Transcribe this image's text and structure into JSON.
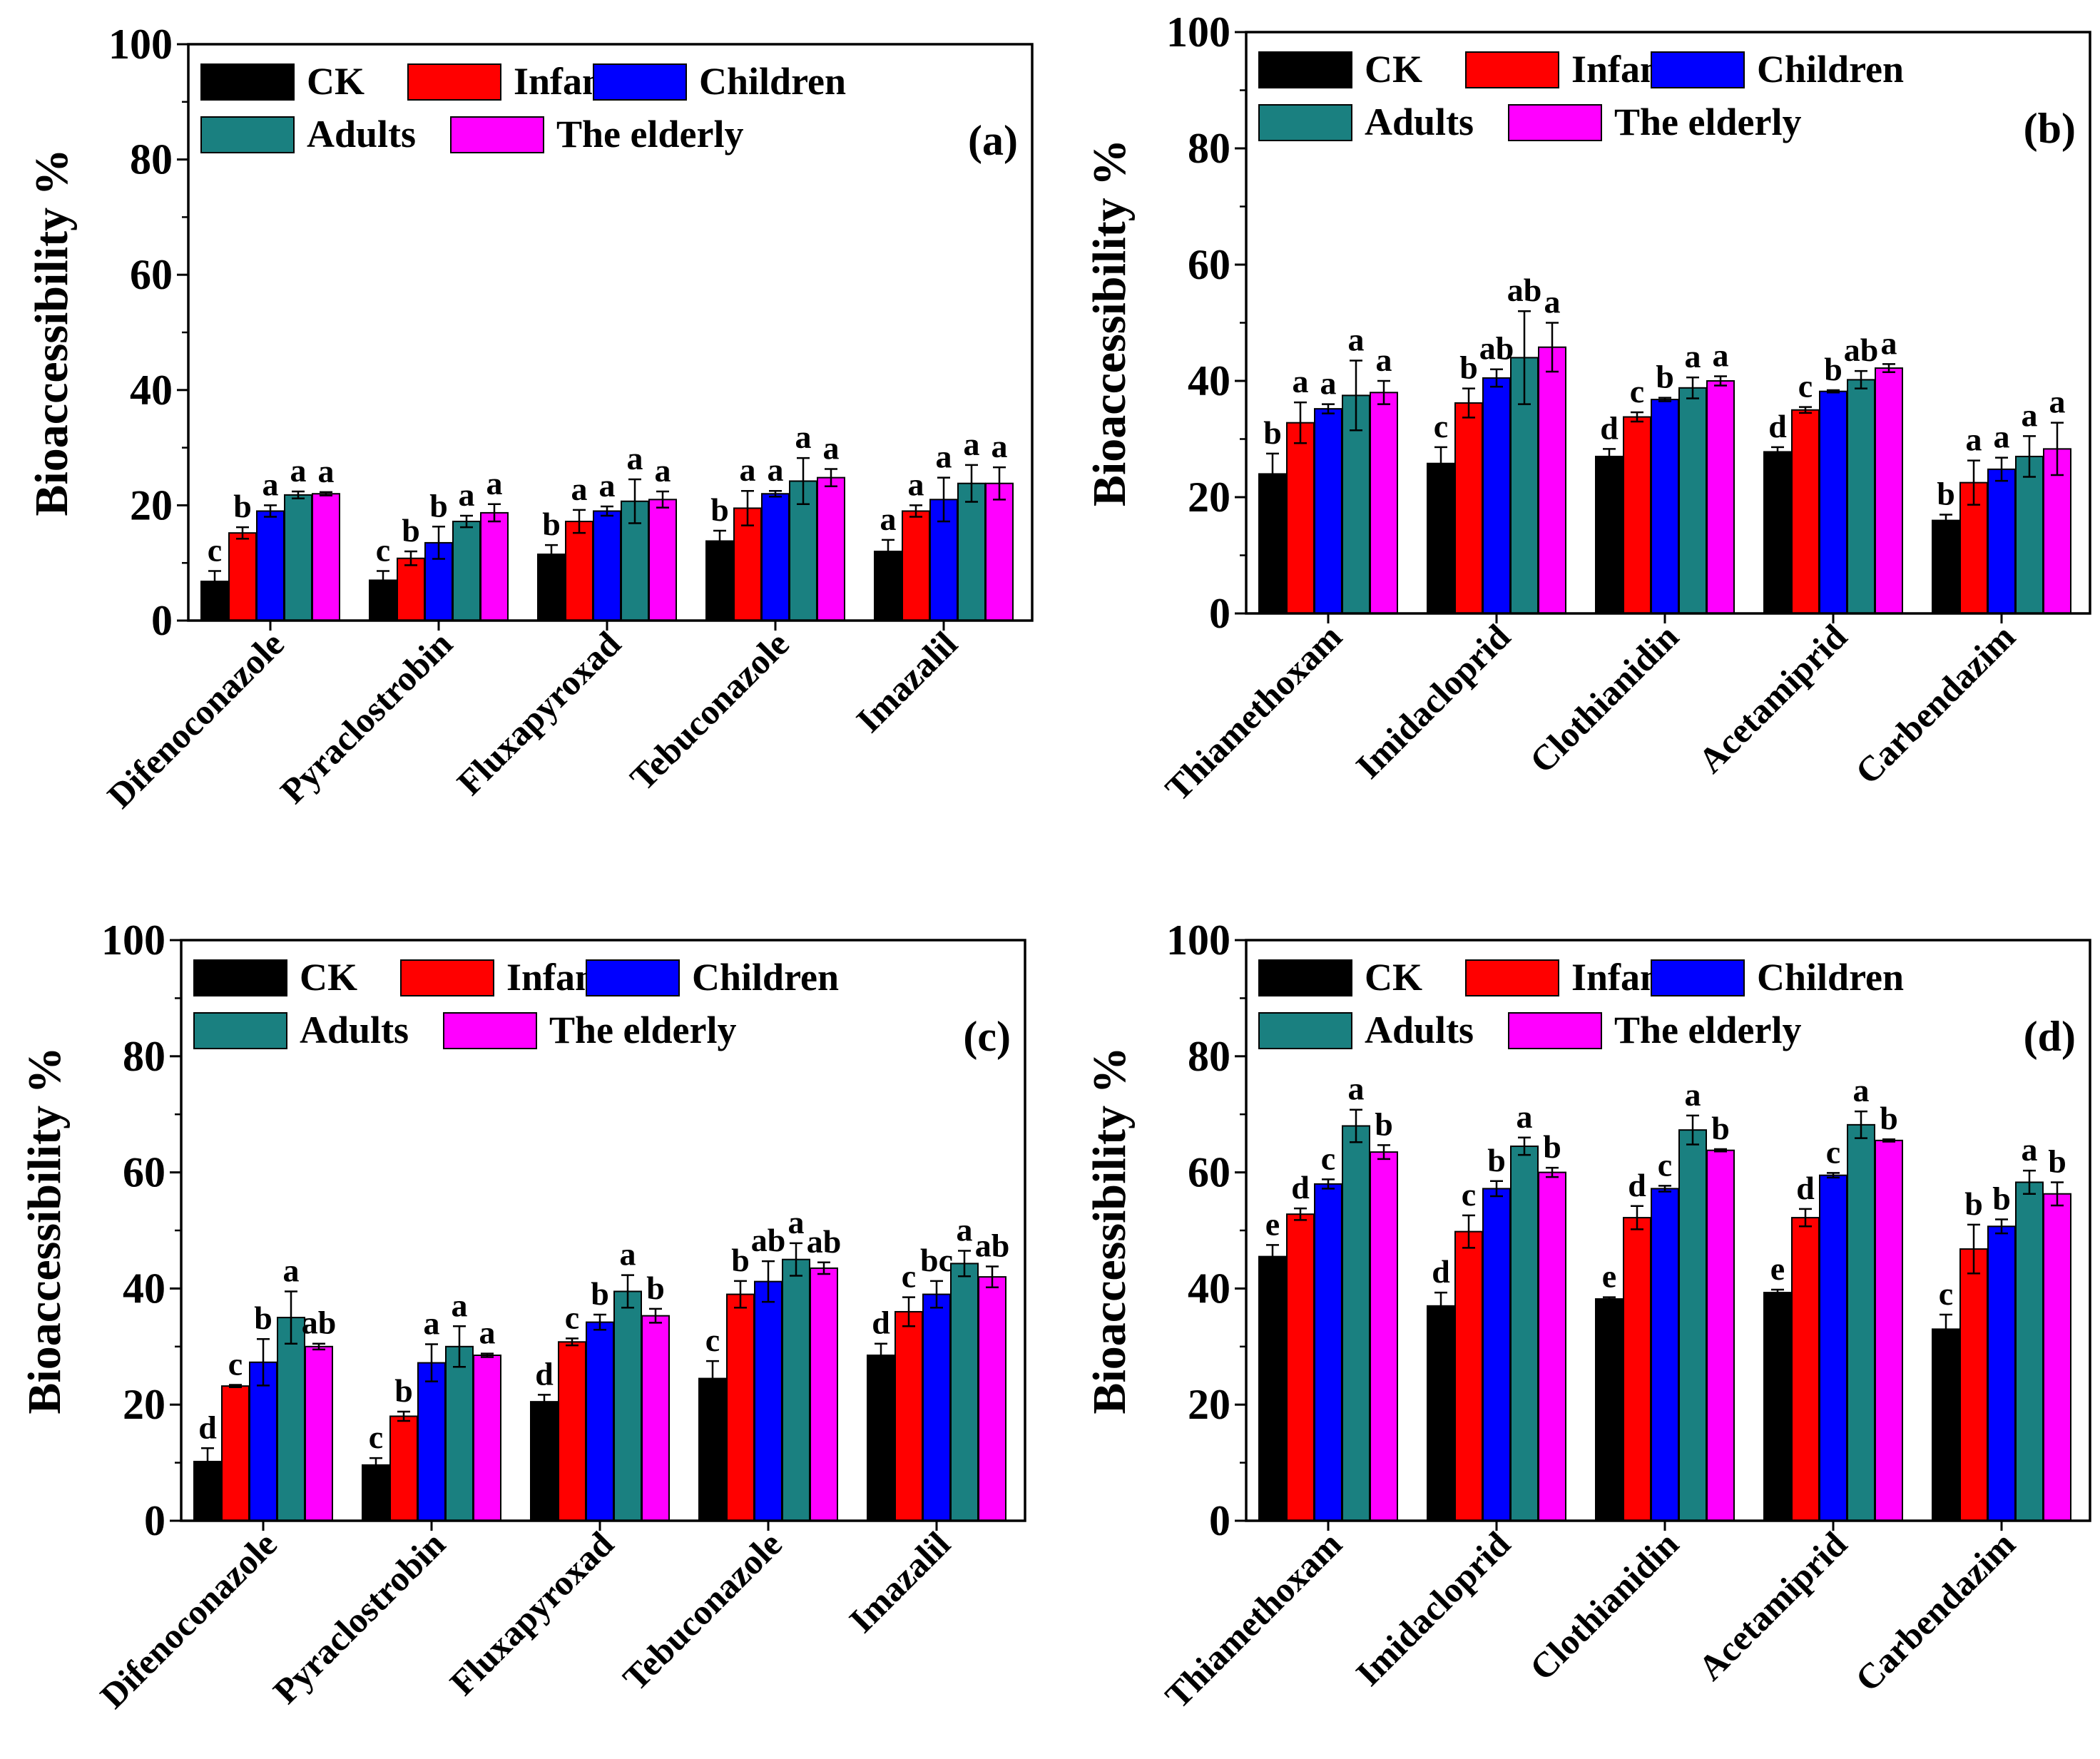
{
  "colors": {
    "CK": "#000000",
    "Infants": "#ff0000",
    "Children": "#0000ff",
    "Adults": "#1a8080",
    "The elderly": "#ff00ff"
  },
  "chart_data": [
    {
      "panel": "(a)",
      "type": "bar",
      "ylabel": "Bioaccessibility %",
      "ylim": [
        0,
        100
      ],
      "yticks": [
        0,
        20,
        40,
        60,
        80,
        100
      ],
      "categories": [
        "Difenoconazole",
        "Pyraclostrobin",
        "Fluxapyroxad",
        "Tebuconazole",
        "Imazalil"
      ],
      "legend": [
        "CK",
        "Infants",
        "Children",
        "Adults",
        "The elderly"
      ],
      "series": [
        {
          "name": "CK",
          "values": [
            6.8,
            7.0,
            11.5,
            13.8,
            12.0
          ],
          "errors": [
            1.8,
            1.6,
            1.6,
            1.8,
            2.0
          ],
          "letters": [
            "c",
            "c",
            "b",
            "b",
            "a"
          ]
        },
        {
          "name": "Infants",
          "values": [
            15.2,
            10.8,
            17.2,
            19.5,
            19.0
          ],
          "errors": [
            1.0,
            1.2,
            2.0,
            3.0,
            1.0
          ],
          "letters": [
            "b",
            "b",
            "a",
            "a",
            "a"
          ]
        },
        {
          "name": "Children",
          "values": [
            19.0,
            13.5,
            19.0,
            22.0,
            21.0
          ],
          "errors": [
            1.0,
            2.8,
            0.8,
            0.5,
            3.8
          ],
          "letters": [
            "a",
            "b",
            "a",
            "a",
            "a"
          ]
        },
        {
          "name": "Adults",
          "values": [
            21.8,
            17.2,
            20.7,
            24.2,
            23.8
          ],
          "errors": [
            0.6,
            1.0,
            3.8,
            4.0,
            3.2
          ],
          "letters": [
            "a",
            "a",
            "a",
            "a",
            "a"
          ]
        },
        {
          "name": "The elderly",
          "values": [
            22.0,
            18.7,
            21.0,
            24.8,
            23.8
          ],
          "errors": [
            0.3,
            1.5,
            1.4,
            1.5,
            2.8
          ],
          "letters": [
            "a",
            "a",
            "a",
            "a",
            "a"
          ]
        }
      ]
    },
    {
      "panel": "(b)",
      "type": "bar",
      "ylabel": "Bioaccessibility %",
      "ylim": [
        0,
        100
      ],
      "yticks": [
        0,
        20,
        40,
        60,
        80,
        100
      ],
      "categories": [
        "Thiamethoxam",
        "Imidacloprid",
        "Clothianidin",
        "Acetamiprid",
        "Carbendazim"
      ],
      "legend": [
        "CK",
        "Infants",
        "Children",
        "Adults",
        "The elderly"
      ],
      "series": [
        {
          "name": "CK",
          "values": [
            24.0,
            25.8,
            27.0,
            27.8,
            16.0
          ],
          "errors": [
            3.5,
            2.8,
            1.3,
            0.8,
            1.0
          ],
          "letters": [
            "b",
            "c",
            "d",
            "d",
            "b"
          ]
        },
        {
          "name": "Infants",
          "values": [
            32.8,
            36.2,
            33.8,
            35.0,
            22.5
          ],
          "errors": [
            3.5,
            2.5,
            0.8,
            0.5,
            3.8
          ],
          "letters": [
            "a",
            "b",
            "c",
            "c",
            "a"
          ]
        },
        {
          "name": "Children",
          "values": [
            35.2,
            40.5,
            36.8,
            38.2,
            24.8
          ],
          "errors": [
            0.8,
            1.5,
            0.3,
            0.2,
            2.0
          ],
          "letters": [
            "a",
            "ab",
            "b",
            "b",
            "a"
          ]
        },
        {
          "name": "Adults",
          "values": [
            37.5,
            44.0,
            38.8,
            40.2,
            27.0
          ],
          "errors": [
            6.0,
            8.0,
            1.8,
            1.5,
            3.5
          ],
          "letters": [
            "a",
            "ab",
            "a",
            "ab",
            "a"
          ]
        },
        {
          "name": "The elderly",
          "values": [
            38.0,
            45.8,
            40.0,
            42.2,
            28.3
          ],
          "errors": [
            2.0,
            4.2,
            0.8,
            0.7,
            4.5
          ],
          "letters": [
            "a",
            "a",
            "a",
            "a",
            "a"
          ]
        }
      ]
    },
    {
      "panel": "(c)",
      "type": "bar",
      "ylabel": "Bioaccessibility %",
      "ylim": [
        0,
        100
      ],
      "yticks": [
        0,
        20,
        40,
        60,
        80,
        100
      ],
      "categories": [
        "Difenoconazole",
        "Pyraclostrobin",
        "Fluxapyroxad",
        "Tebuconazole",
        "Imazalil"
      ],
      "legend": [
        "CK",
        "Infants",
        "Children",
        "Adults",
        "The elderly"
      ],
      "series": [
        {
          "name": "CK",
          "values": [
            10.2,
            9.6,
            20.5,
            24.5,
            28.5
          ],
          "errors": [
            2.3,
            1.2,
            1.2,
            3.0,
            2.0
          ],
          "letters": [
            "d",
            "c",
            "d",
            "c",
            "d"
          ]
        },
        {
          "name": "Infants",
          "values": [
            23.2,
            18.0,
            30.8,
            39.0,
            36.0
          ],
          "errors": [
            0.2,
            0.8,
            0.6,
            2.3,
            2.5
          ],
          "letters": [
            "c",
            "b",
            "c",
            "b",
            "c"
          ]
        },
        {
          "name": "Children",
          "values": [
            27.3,
            27.2,
            34.2,
            41.2,
            39.0
          ],
          "errors": [
            4.0,
            3.2,
            1.3,
            3.5,
            2.3
          ],
          "letters": [
            "b",
            "a",
            "b",
            "ab",
            "bc"
          ]
        },
        {
          "name": "Adults",
          "values": [
            35.0,
            30.0,
            39.5,
            45.0,
            44.3
          ],
          "errors": [
            4.5,
            3.5,
            2.8,
            2.8,
            2.2
          ],
          "letters": [
            "a",
            "a",
            "a",
            "a",
            "a"
          ]
        },
        {
          "name": "The elderly",
          "values": [
            30.0,
            28.5,
            35.3,
            43.5,
            42.0
          ],
          "errors": [
            0.5,
            0.3,
            1.2,
            1.0,
            1.8
          ],
          "letters": [
            "ab",
            "a",
            "b",
            "ab",
            "ab"
          ]
        }
      ]
    },
    {
      "panel": "(d)",
      "type": "bar",
      "ylabel": "Bioaccessibility %",
      "ylim": [
        0,
        100
      ],
      "yticks": [
        0,
        20,
        40,
        60,
        80,
        100
      ],
      "categories": [
        "Thiamethoxam",
        "Imidacloprid",
        "Clothianidin",
        "Acetamiprid",
        "Carbendazim"
      ],
      "legend": [
        "CK",
        "Infants",
        "Children",
        "Adults",
        "The elderly"
      ],
      "series": [
        {
          "name": "CK",
          "values": [
            45.5,
            37.0,
            38.2,
            39.3,
            33.0
          ],
          "errors": [
            2.0,
            2.3,
            0.3,
            0.5,
            2.5
          ],
          "letters": [
            "e",
            "d",
            "e",
            "e",
            "c"
          ]
        },
        {
          "name": "Infants",
          "values": [
            52.8,
            49.8,
            52.2,
            52.2,
            46.8
          ],
          "errors": [
            1.0,
            2.8,
            2.0,
            1.5,
            4.2
          ],
          "letters": [
            "d",
            "c",
            "d",
            "d",
            "b"
          ]
        },
        {
          "name": "Children",
          "values": [
            58.0,
            57.2,
            57.2,
            59.5,
            50.7
          ],
          "errors": [
            0.8,
            1.3,
            0.5,
            0.4,
            1.2
          ],
          "letters": [
            "c",
            "b",
            "c",
            "c",
            "b"
          ]
        },
        {
          "name": "Adults",
          "values": [
            68.0,
            64.5,
            67.3,
            68.2,
            58.3
          ],
          "errors": [
            2.8,
            1.5,
            2.5,
            2.3,
            2.0
          ],
          "letters": [
            "a",
            "a",
            "a",
            "a",
            "a"
          ]
        },
        {
          "name": "The elderly",
          "values": [
            63.5,
            60.0,
            63.8,
            65.5,
            56.3
          ],
          "errors": [
            1.2,
            0.8,
            0.2,
            0.2,
            2.0
          ],
          "letters": [
            "b",
            "b",
            "b",
            "b",
            "b"
          ]
        }
      ]
    }
  ]
}
